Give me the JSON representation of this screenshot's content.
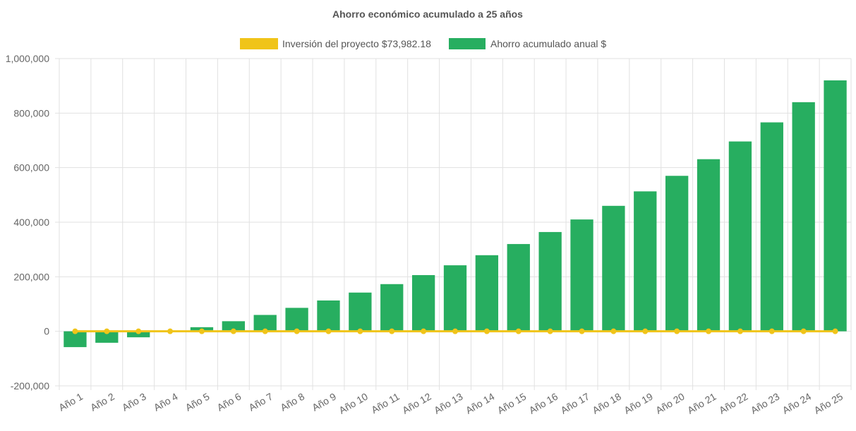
{
  "chart_data": {
    "type": "bar",
    "title": "Ahorro económico acumulado a 25 años",
    "categories": [
      "Año 1",
      "Año 2",
      "Año 3",
      "Año 4",
      "Año 5",
      "Año 6",
      "Año 7",
      "Año 8",
      "Año 9",
      "Año 10",
      "Año 11",
      "Año 12",
      "Año 13",
      "Año 14",
      "Año 15",
      "Año 16",
      "Año 17",
      "Año 18",
      "Año 19",
      "Año 20",
      "Año 21",
      "Año 22",
      "Año 23",
      "Año 24",
      "Año 25"
    ],
    "series": [
      {
        "name": "Inversión del proyecto $73,982.18",
        "type": "line",
        "color": "#f0c419",
        "values": [
          0,
          0,
          0,
          0,
          0,
          0,
          0,
          0,
          0,
          0,
          0,
          0,
          0,
          0,
          0,
          0,
          0,
          0,
          0,
          0,
          0,
          0,
          0,
          0,
          0
        ]
      },
      {
        "name": "Ahorro acumulado anual $",
        "type": "bar",
        "color": "#27ae60",
        "values": [
          -58000,
          -42000,
          -22000,
          0,
          15000,
          37000,
          60000,
          86000,
          113000,
          142000,
          173000,
          206000,
          242000,
          279000,
          320000,
          364000,
          410000,
          460000,
          513000,
          570000,
          631000,
          696000,
          766000,
          840000,
          920000
        ]
      }
    ],
    "y_ticks": [
      "1,000,000",
      "800,000",
      "600,000",
      "400,000",
      "200,000",
      "0",
      "-200,000"
    ],
    "ylim": [
      -200000,
      1000000
    ],
    "grid": true,
    "legend_position": "top"
  }
}
